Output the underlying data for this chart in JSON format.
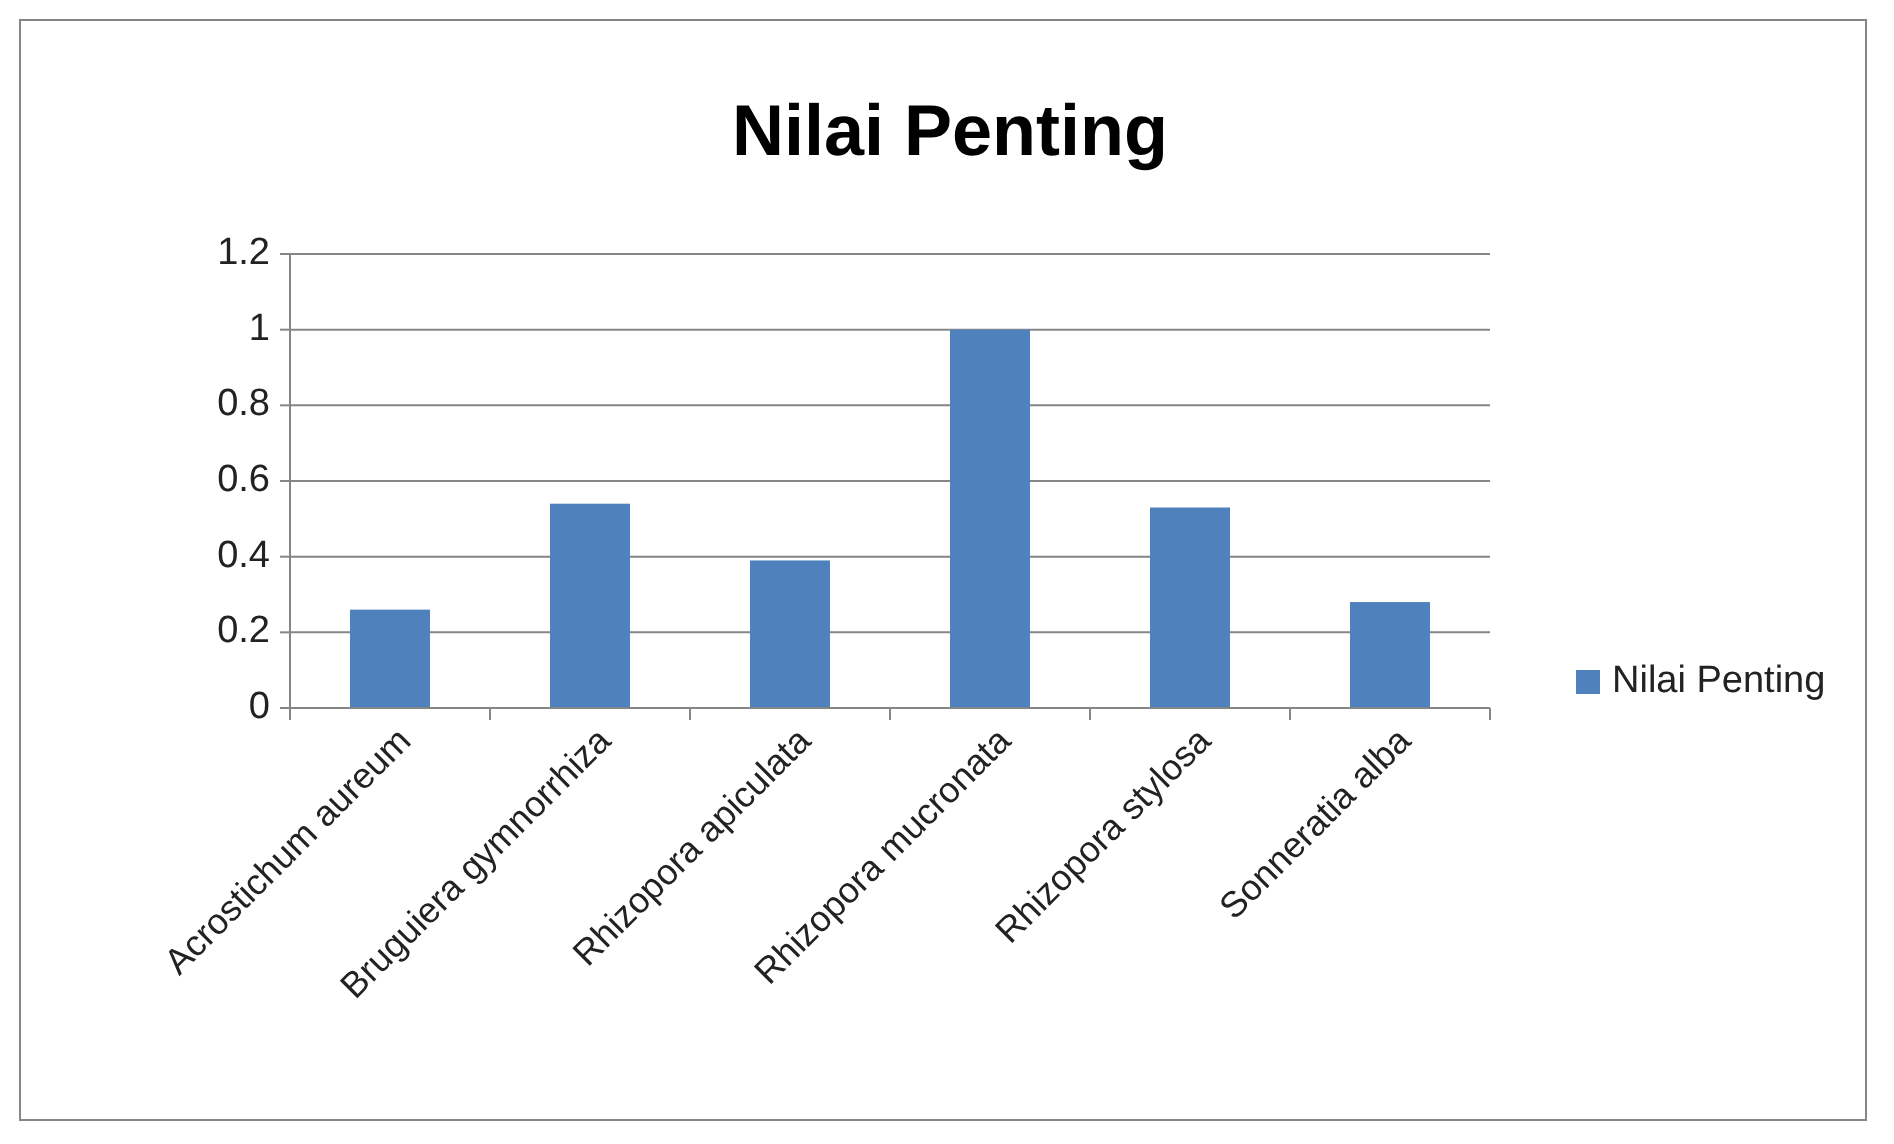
{
  "chart_data": {
    "type": "bar",
    "title": "Nilai Penting",
    "categories": [
      "Acrostichum aureum",
      "Bruguiera gymnorrhiza",
      "Rhizopora apiculata",
      "Rhizopora mucronata",
      "Rhizopora stylosa",
      "Sonneratia alba"
    ],
    "series": [
      {
        "name": "Nilai Penting",
        "color": "#4f81bd",
        "values": [
          0.26,
          0.54,
          0.39,
          1.0,
          0.53,
          0.28
        ]
      }
    ],
    "ylim": [
      0,
      1.2
    ],
    "yticks": [
      0,
      0.2,
      0.4,
      0.6,
      0.8,
      1,
      1.2
    ],
    "grid": "y",
    "legend": "right"
  }
}
